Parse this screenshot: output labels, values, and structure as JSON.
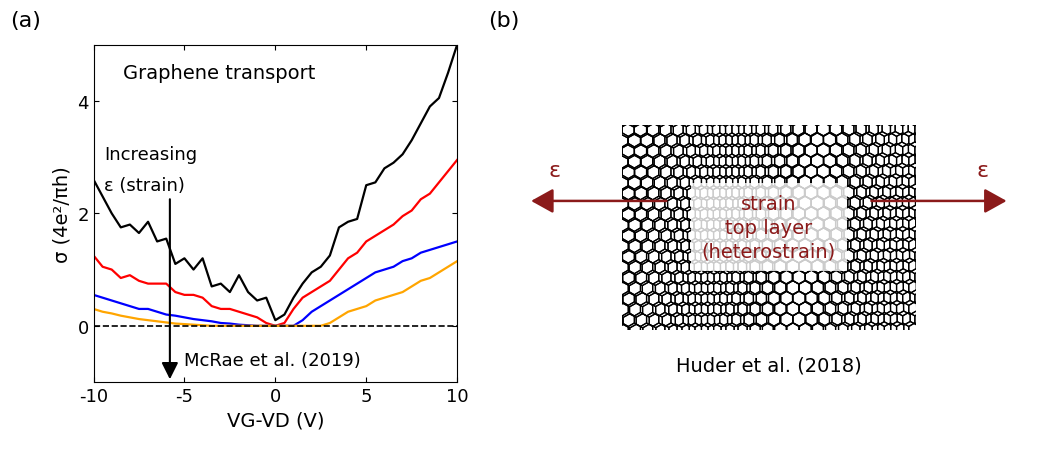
{
  "chart_data": {
    "type": "line",
    "panel_label": "(a)",
    "x_label": "VG-VD (V)",
    "y_label": "σ (4e²/πh)",
    "annotations": [
      "Graphene transport",
      "Increasing",
      "ε (strain)",
      "McRae et al. (2019)"
    ],
    "x": [
      -10,
      -9.5,
      -9,
      -8.5,
      -8,
      -7.5,
      -7,
      -6.5,
      -6,
      -5.5,
      -5,
      -4.5,
      -4,
      -3.5,
      -3,
      -2.5,
      -2,
      -1.5,
      -1,
      -0.5,
      0,
      0.5,
      1,
      1.5,
      2,
      2.5,
      3,
      3.5,
      4,
      4.5,
      5,
      5.5,
      6,
      6.5,
      7,
      7.5,
      8,
      8.5,
      9,
      9.5,
      10
    ],
    "series": [
      {
        "color": "#000000",
        "values": [
          2.6,
          2.3,
          2.0,
          1.75,
          1.8,
          1.65,
          1.85,
          1.5,
          1.55,
          1.1,
          1.2,
          1.0,
          1.2,
          0.7,
          0.75,
          0.6,
          0.9,
          0.6,
          0.45,
          0.5,
          0.1,
          0.2,
          0.5,
          0.75,
          0.95,
          1.05,
          1.25,
          1.75,
          1.85,
          1.9,
          2.5,
          2.55,
          2.8,
          2.9,
          3.05,
          3.3,
          3.6,
          3.9,
          4.05,
          4.5,
          5.0
        ]
      },
      {
        "color": "#ff0000",
        "values": [
          1.25,
          1.05,
          1.0,
          0.85,
          0.9,
          0.8,
          0.75,
          0.75,
          0.75,
          0.6,
          0.55,
          0.55,
          0.5,
          0.35,
          0.3,
          0.3,
          0.25,
          0.2,
          0.15,
          0.05,
          0.0,
          0.05,
          0.3,
          0.5,
          0.6,
          0.7,
          0.8,
          1.0,
          1.2,
          1.3,
          1.5,
          1.6,
          1.7,
          1.8,
          1.95,
          2.05,
          2.25,
          2.35,
          2.55,
          2.75,
          2.95
        ]
      },
      {
        "color": "#0000ff",
        "values": [
          0.55,
          0.5,
          0.45,
          0.4,
          0.35,
          0.3,
          0.3,
          0.25,
          0.2,
          0.18,
          0.15,
          0.12,
          0.1,
          0.08,
          0.05,
          0.04,
          0.02,
          0.01,
          0.0,
          0.0,
          0.0,
          0.0,
          0.0,
          0.1,
          0.25,
          0.35,
          0.45,
          0.55,
          0.65,
          0.75,
          0.85,
          0.95,
          1.0,
          1.05,
          1.15,
          1.2,
          1.3,
          1.35,
          1.4,
          1.45,
          1.5
        ]
      },
      {
        "color": "#ffa500",
        "values": [
          0.3,
          0.25,
          0.22,
          0.18,
          0.15,
          0.12,
          0.1,
          0.08,
          0.06,
          0.04,
          0.03,
          0.02,
          0.01,
          0.0,
          0.0,
          0.0,
          0.0,
          0.0,
          0.0,
          0.0,
          0.0,
          0.0,
          0.0,
          0.0,
          0.0,
          0.0,
          0.05,
          0.15,
          0.25,
          0.3,
          0.35,
          0.45,
          0.5,
          0.55,
          0.6,
          0.7,
          0.8,
          0.85,
          0.95,
          1.05,
          1.15
        ]
      }
    ],
    "xlim": [
      -10,
      10
    ],
    "xticks": [
      -10,
      -5,
      0,
      5,
      10
    ],
    "ylim": [
      -1,
      5
    ],
    "yticks": [
      0,
      2,
      4
    ]
  },
  "diagram": {
    "panel_label": "(b)",
    "arrow_labels": [
      "ε",
      "ε"
    ],
    "center_text": "strain\ntop layer\n(heterostrain)",
    "caption": "Huder et al. (2018)"
  }
}
